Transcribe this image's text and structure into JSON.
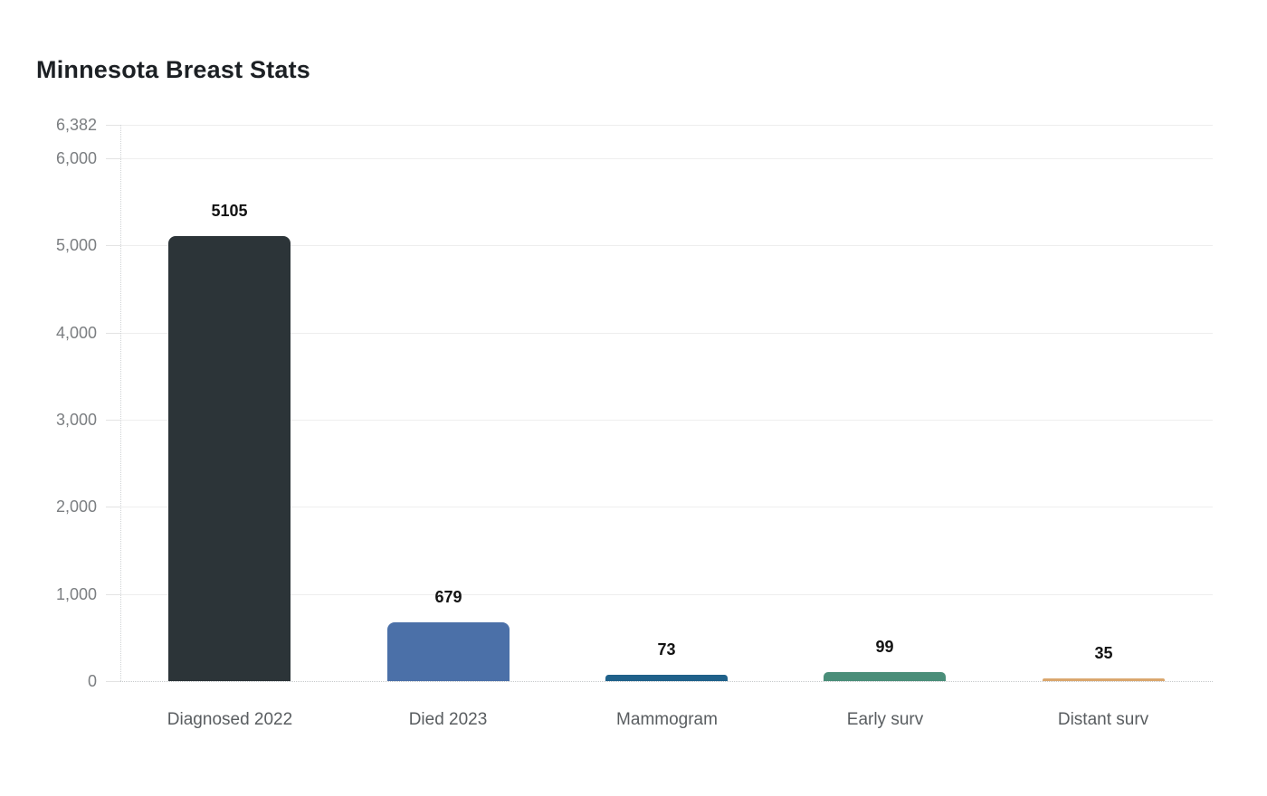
{
  "page": {
    "background": "#ffffff"
  },
  "chart_data": {
    "type": "bar",
    "title": "Minnesota Breast Stats",
    "categories": [
      "Diagnosed 2022",
      "Died 2023",
      "Mammogram",
      "Early surv",
      "Distant surv"
    ],
    "values": [
      5105,
      679,
      73,
      99,
      35
    ],
    "data_labels": [
      "5105",
      "679",
      "73",
      "99",
      "35"
    ],
    "bar_colors": [
      "#2c3438",
      "#4b70a8",
      "#1f618a",
      "#4a8e79",
      "#daa76e"
    ],
    "yticks": [
      {
        "value": 0,
        "label": "0"
      },
      {
        "value": 1000,
        "label": "1,000"
      },
      {
        "value": 2000,
        "label": "2,000"
      },
      {
        "value": 3000,
        "label": "3,000"
      },
      {
        "value": 4000,
        "label": "4,000"
      },
      {
        "value": 5000,
        "label": "5,000"
      },
      {
        "value": 6000,
        "label": "6,000"
      },
      {
        "value": 6382,
        "label": "6,382"
      }
    ],
    "ylim": [
      0,
      6382
    ],
    "xlabel": "",
    "ylabel": "",
    "legend": "none",
    "grid": "horizontal-light",
    "colors": {
      "title": "#1c2024",
      "y_tick_label": "#7b7e81",
      "x_tick_label": "#595d60",
      "value_label": "#131313",
      "gridline": "#eeeeee",
      "axis_dotted": "#c6c9cb"
    }
  }
}
